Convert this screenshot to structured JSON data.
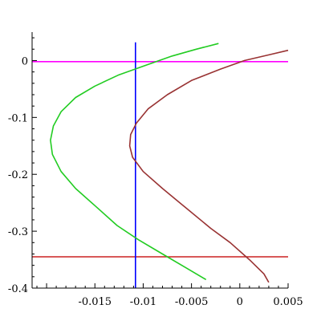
{
  "chart_data": {
    "type": "line",
    "xlim": [
      -0.0215,
      0.005
    ],
    "ylim": [
      -0.4,
      0.05
    ],
    "grid": false,
    "x_ticks": [
      {
        "value": -0.015,
        "label": "-0.015"
      },
      {
        "value": -0.01,
        "label": "-0.01"
      },
      {
        "value": -0.005,
        "label": "-0.005"
      },
      {
        "value": 0,
        "label": "0"
      },
      {
        "value": 0.005,
        "label": "0.005"
      }
    ],
    "y_ticks": [
      {
        "value": 0,
        "label": "0"
      },
      {
        "value": -0.1,
        "label": "-0.1"
      },
      {
        "value": -0.2,
        "label": "-0.2"
      },
      {
        "value": -0.3,
        "label": "-0.3"
      },
      {
        "value": -0.4,
        "label": "-0.4"
      }
    ],
    "series": [
      {
        "color": "#22cc22",
        "x": [
          -0.0022,
          -0.0045,
          -0.007,
          -0.01,
          -0.0125,
          -0.015,
          -0.017,
          -0.0185,
          -0.0193,
          -0.0196,
          -0.0194,
          -0.0185,
          -0.017,
          -0.015,
          -0.0127,
          -0.0105,
          -0.008,
          -0.0055,
          -0.0035
        ],
        "y": [
          0.03,
          0.02,
          0.008,
          -0.01,
          -0.025,
          -0.045,
          -0.065,
          -0.09,
          -0.115,
          -0.14,
          -0.165,
          -0.195,
          -0.225,
          -0.255,
          -0.29,
          -0.315,
          -0.34,
          -0.365,
          -0.385
        ]
      },
      {
        "color": "#993333",
        "x": [
          0.005,
          0.003,
          0.0005,
          -0.002,
          -0.005,
          -0.0075,
          -0.0095,
          -0.0107,
          -0.0113,
          -0.0114,
          -0.0111,
          -0.01,
          -0.008,
          -0.0055,
          -0.003,
          -0.001,
          0.001,
          0.0025,
          0.003
        ],
        "y": [
          0.018,
          0.01,
          0.0,
          -0.015,
          -0.035,
          -0.06,
          -0.085,
          -0.11,
          -0.13,
          -0.15,
          -0.17,
          -0.195,
          -0.225,
          -0.26,
          -0.295,
          -0.32,
          -0.35,
          -0.375,
          -0.39
        ]
      }
    ],
    "hlines": [
      {
        "y": -0.002,
        "color": "#ff00ff"
      },
      {
        "y": -0.345,
        "color": "#cc2222"
      }
    ],
    "vlines": [
      {
        "x": -0.0108,
        "color": "#0000ff"
      }
    ]
  }
}
